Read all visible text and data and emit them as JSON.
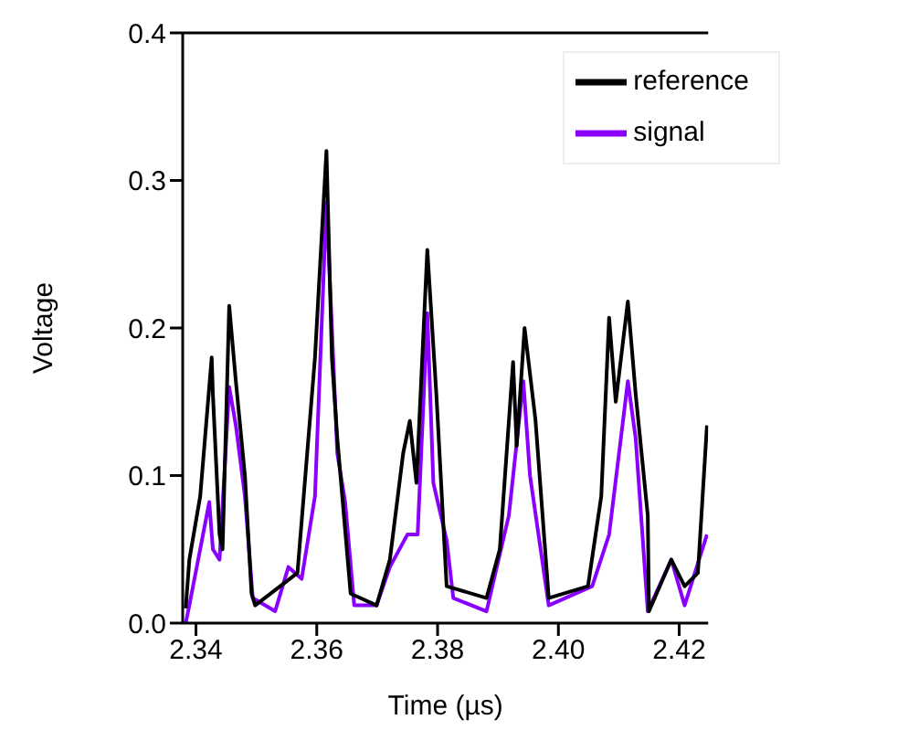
{
  "chart_data": {
    "type": "line",
    "xlabel": "Time (µs)",
    "ylabel": "Voltage",
    "xlim": [
      2.3378,
      2.4248
    ],
    "xticks": [
      2.34,
      2.36,
      2.38,
      {
        "value": 2.4,
        "label": "2.40"
      },
      2.42
    ],
    "ylim": [
      0,
      0.4
    ],
    "yticks": [
      {
        "value": 0,
        "label": "0.0"
      },
      0.1,
      0.2,
      0.3,
      0.4
    ],
    "grid": false,
    "legend": "top right",
    "marker": "none",
    "line_style": "solid",
    "series": [
      {
        "name": "signal",
        "color": "#8a00ff",
        "x": [
          2.3383,
          2.3389,
          2.3422,
          2.3428,
          2.3439,
          2.3455,
          2.3466,
          2.3481,
          2.3494,
          2.3531,
          2.3553,
          2.3575,
          2.3597,
          2.3616,
          2.3634,
          2.3647,
          2.3662,
          2.3699,
          2.3721,
          2.375,
          2.3767,
          2.3783,
          2.3793,
          2.3815,
          2.3826,
          2.3881,
          2.3918,
          2.3942,
          2.3953,
          2.3984,
          2.4056,
          2.4084,
          2.4115,
          2.4128,
          2.4148,
          2.4187,
          2.4209,
          2.4246
        ],
        "values": [
          0.0,
          0.012,
          0.082,
          0.05,
          0.043,
          0.16,
          0.134,
          0.086,
          0.017,
          0.008,
          0.038,
          0.03,
          0.086,
          0.285,
          0.115,
          0.082,
          0.012,
          0.012,
          0.038,
          0.06,
          0.06,
          0.21,
          0.095,
          0.056,
          0.017,
          0.008,
          0.073,
          0.164,
          0.1,
          0.012,
          0.025,
          0.06,
          0.164,
          0.125,
          0.008,
          0.043,
          0.012,
          0.06
        ]
      },
      {
        "name": "reference",
        "color": "#000000",
        "x": [
          2.3383,
          2.3389,
          2.3407,
          2.3426,
          2.3428,
          2.3439,
          2.3444,
          2.3455,
          2.3466,
          2.3481,
          2.3492,
          2.3498,
          2.3568,
          2.3597,
          2.3616,
          2.3625,
          2.3634,
          2.3656,
          2.3699,
          2.3721,
          2.3743,
          2.3754,
          2.3765,
          2.3783,
          2.3798,
          2.3815,
          2.3881,
          2.3903,
          2.3925,
          2.3931,
          2.3944,
          2.3962,
          2.3984,
          2.4049,
          2.4071,
          2.4084,
          2.4095,
          2.4115,
          2.4128,
          2.4148,
          2.415,
          2.4187,
          2.4209,
          2.4231,
          2.4246
        ],
        "values": [
          0.01,
          0.043,
          0.086,
          0.18,
          0.155,
          0.06,
          0.05,
          0.215,
          0.164,
          0.1,
          0.02,
          0.012,
          0.034,
          0.18,
          0.32,
          0.18,
          0.125,
          0.02,
          0.012,
          0.043,
          0.115,
          0.137,
          0.095,
          0.253,
          0.155,
          0.025,
          0.017,
          0.05,
          0.177,
          0.12,
          0.2,
          0.138,
          0.017,
          0.025,
          0.086,
          0.207,
          0.15,
          0.218,
          0.155,
          0.073,
          0.008,
          0.043,
          0.025,
          0.034,
          0.134
        ]
      }
    ]
  }
}
